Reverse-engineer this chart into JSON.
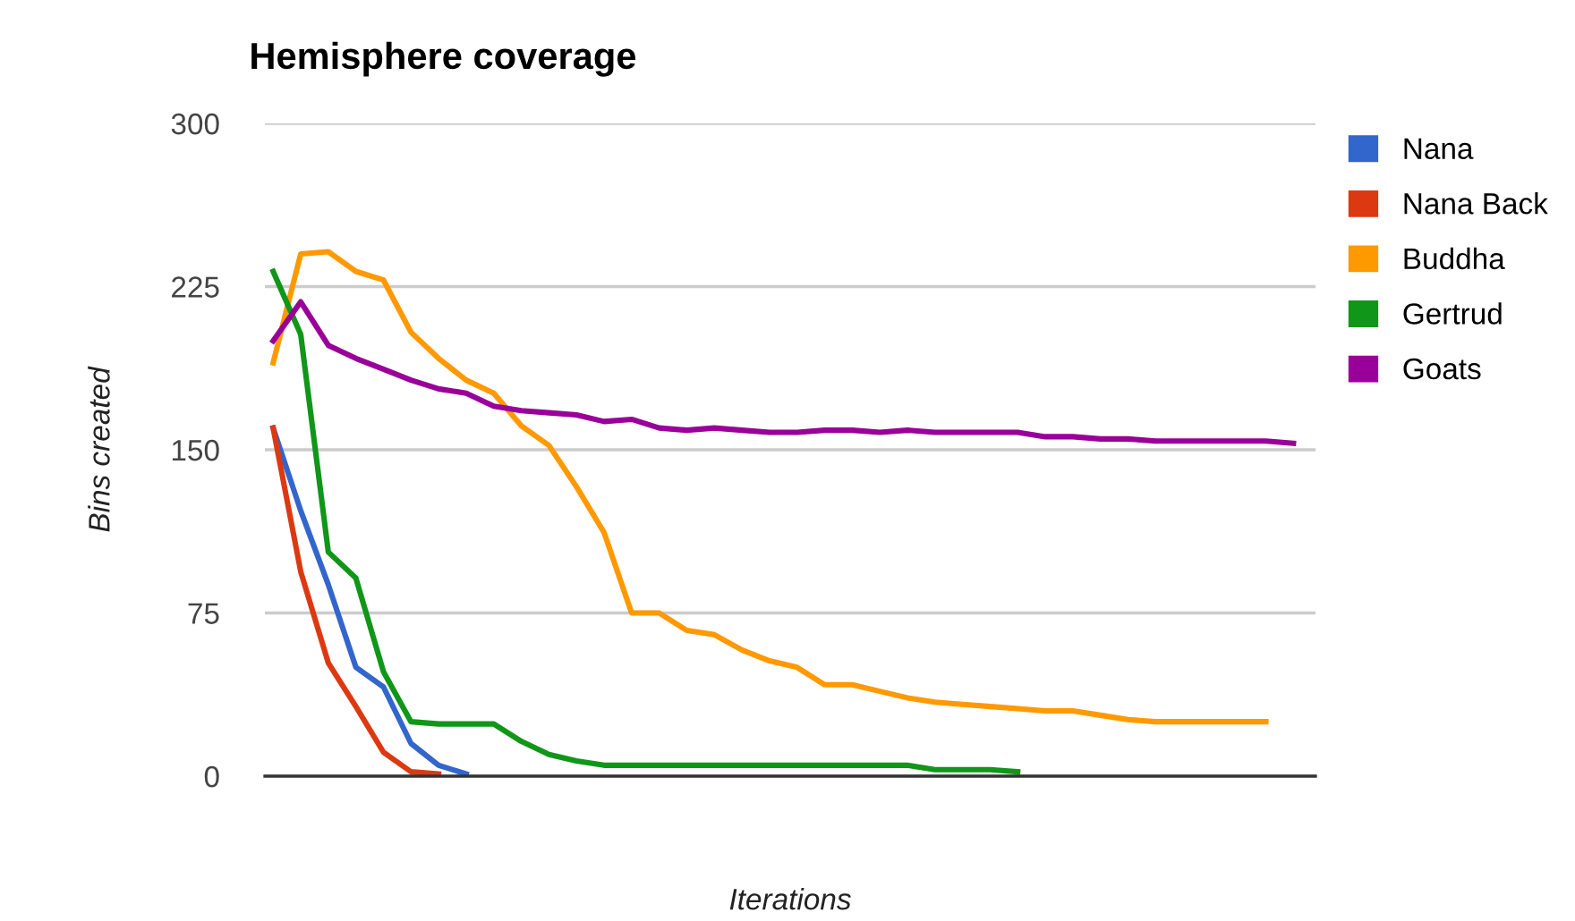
{
  "chart_data": {
    "type": "line",
    "title": "Hemisphere coverage",
    "xlabel": "Iterations",
    "ylabel": "Bins created",
    "categories": [
      null,
      null,
      null,
      null,
      null,
      null,
      null,
      null,
      null,
      null,
      null,
      null,
      null,
      null,
      null,
      null,
      null,
      null,
      null,
      null,
      null,
      null,
      null,
      null,
      null,
      null,
      null,
      null,
      null,
      null,
      null,
      null,
      null,
      null,
      null,
      null,
      null,
      null
    ],
    "series": [
      {
        "name": "Nana",
        "color": "#3366cc",
        "values": [
          160,
          122,
          88,
          50,
          41,
          15,
          5,
          1,
          null,
          null,
          null,
          null,
          null,
          null,
          null,
          null,
          null,
          null,
          null,
          null,
          null,
          null,
          null,
          null,
          null,
          null,
          null,
          null,
          null,
          null,
          null,
          null,
          null,
          null,
          null,
          null,
          null,
          null
        ]
      },
      {
        "name": "Nana Back",
        "color": "#dc3912",
        "values": [
          160,
          94,
          52,
          32,
          11,
          2,
          1,
          null,
          null,
          null,
          null,
          null,
          null,
          null,
          null,
          null,
          null,
          null,
          null,
          null,
          null,
          null,
          null,
          null,
          null,
          null,
          null,
          null,
          null,
          null,
          null,
          null,
          null,
          null,
          null,
          null,
          null,
          null
        ]
      },
      {
        "name": "Buddha",
        "color": "#ff9900",
        "values": [
          190,
          240,
          241,
          232,
          228,
          204,
          192,
          182,
          176,
          161,
          152,
          133,
          112,
          75,
          75,
          67,
          65,
          58,
          53,
          50,
          42,
          42,
          39,
          36,
          34,
          33,
          32,
          31,
          30,
          30,
          28,
          26,
          25,
          25,
          25,
          25,
          25,
          null
        ]
      },
      {
        "name": "Gertrud",
        "color": "#109618",
        "values": [
          232,
          203,
          103,
          91,
          48,
          25,
          24,
          24,
          24,
          16,
          10,
          7,
          5,
          5,
          5,
          5,
          5,
          5,
          5,
          5,
          5,
          5,
          5,
          5,
          3,
          3,
          3,
          2,
          null,
          null,
          null,
          null,
          null,
          null,
          null,
          null,
          null,
          null
        ]
      },
      {
        "name": "Goats",
        "color": "#990099",
        "values": [
          200,
          218,
          198,
          192,
          187,
          182,
          178,
          176,
          170,
          168,
          167,
          166,
          163,
          164,
          160,
          159,
          160,
          159,
          158,
          158,
          159,
          159,
          158,
          159,
          158,
          158,
          158,
          158,
          156,
          156,
          155,
          155,
          154,
          154,
          154,
          154,
          154,
          153
        ]
      }
    ],
    "ylim": [
      0,
      300
    ],
    "yticks": [
      0,
      75,
      150,
      225,
      300
    ],
    "grid": "y",
    "legend": "top right",
    "tick_labels": "y",
    "marker": "none",
    "line_style": "solid"
  }
}
